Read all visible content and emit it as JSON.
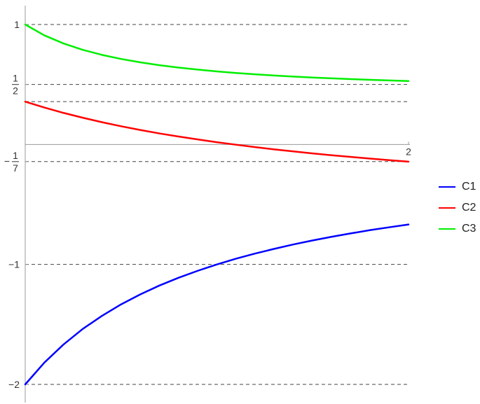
{
  "chart_data": {
    "type": "line",
    "x_range": [
      0,
      2
    ],
    "y_range": [
      -2,
      1
    ],
    "x_ticks": [
      {
        "value": 2,
        "label": "2"
      }
    ],
    "y_ticks": [
      {
        "value": 1,
        "label": "1"
      },
      {
        "value": 0.5,
        "label": "1/2"
      },
      {
        "value": -0.142857,
        "label": "-1/7"
      },
      {
        "value": -1,
        "label": "-1"
      },
      {
        "value": -2,
        "label": "-2"
      }
    ],
    "reference_lines": [
      1,
      0.5,
      0.357,
      -0.142857,
      -1,
      -2
    ],
    "series": [
      {
        "name": "C1",
        "color": "#0000ff",
        "x": [
          0,
          0.1,
          0.2,
          0.3,
          0.4,
          0.5,
          0.6,
          0.7,
          0.8,
          0.9,
          1.0,
          1.1,
          1.2,
          1.3,
          1.4,
          1.5,
          1.6,
          1.7,
          1.8,
          1.9,
          2.0
        ],
        "y": [
          -2,
          -1.818,
          -1.667,
          -1.538,
          -1.429,
          -1.333,
          -1.25,
          -1.176,
          -1.111,
          -1.053,
          -1,
          -0.952,
          -0.909,
          -0.87,
          -0.833,
          -0.8,
          -0.769,
          -0.741,
          -0.714,
          -0.69,
          -0.667
        ]
      },
      {
        "name": "C2",
        "color": "#ff0000",
        "x": [
          0,
          0.1,
          0.2,
          0.3,
          0.4,
          0.5,
          0.6,
          0.7,
          0.8,
          0.9,
          1.0,
          1.1,
          1.2,
          1.3,
          1.4,
          1.5,
          1.6,
          1.7,
          1.8,
          1.9,
          2.0
        ],
        "y": [
          0.357,
          0.308,
          0.263,
          0.223,
          0.186,
          0.152,
          0.121,
          0.092,
          0.066,
          0.042,
          0.019,
          -0.002,
          -0.022,
          -0.041,
          -0.058,
          -0.075,
          -0.09,
          -0.104,
          -0.118,
          -0.131,
          -0.143
        ]
      },
      {
        "name": "C3",
        "color": "#00ee00",
        "x": [
          0,
          0.1,
          0.2,
          0.3,
          0.4,
          0.5,
          0.6,
          0.7,
          0.8,
          0.9,
          1.0,
          1.1,
          1.2,
          1.3,
          1.4,
          1.5,
          1.6,
          1.7,
          1.8,
          1.9,
          2.0
        ],
        "y": [
          1,
          0.909,
          0.842,
          0.789,
          0.747,
          0.713,
          0.685,
          0.661,
          0.641,
          0.624,
          0.609,
          0.596,
          0.585,
          0.575,
          0.566,
          0.558,
          0.551,
          0.545,
          0.539,
          0.534,
          0.529
        ]
      }
    ]
  },
  "legend": {
    "items": [
      {
        "label": "C1",
        "color": "#0000ff"
      },
      {
        "label": "C2",
        "color": "#ff0000"
      },
      {
        "label": "C3",
        "color": "#00ee00"
      }
    ]
  }
}
